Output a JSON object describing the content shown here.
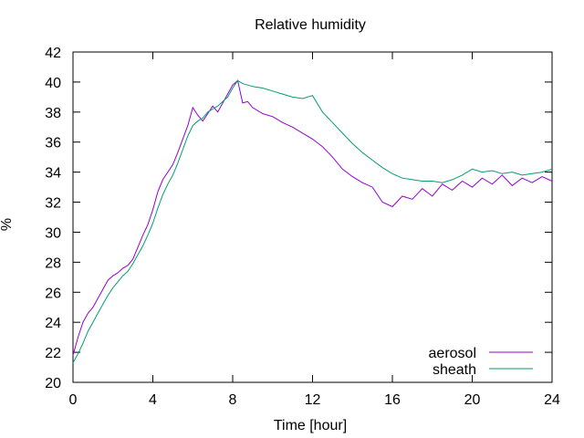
{
  "chart_data": {
    "type": "line",
    "title": "Relative humidity",
    "xlabel": "Time [hour]",
    "ylabel": "%",
    "xlim": [
      0,
      24
    ],
    "ylim": [
      20,
      42
    ],
    "x_ticks": [
      0,
      4,
      8,
      12,
      16,
      20,
      24
    ],
    "y_ticks": [
      20,
      22,
      24,
      26,
      28,
      30,
      32,
      34,
      36,
      38,
      40,
      42
    ],
    "x_tick_labels": [
      "0",
      "4",
      "8",
      "12",
      "16",
      "20",
      "24"
    ],
    "y_tick_labels": [
      "20",
      "22",
      "24",
      "26",
      "28",
      "30",
      "32",
      "34",
      "36",
      "38",
      "40",
      "42"
    ],
    "grid": false,
    "legend": "bottom-right",
    "series": [
      {
        "name": "aerosol",
        "color": "#9400d3",
        "x": [
          0,
          0.25,
          0.5,
          0.75,
          1,
          1.25,
          1.5,
          1.75,
          2,
          2.25,
          2.5,
          2.75,
          3,
          3.25,
          3.5,
          3.75,
          4,
          4.25,
          4.5,
          4.75,
          5,
          5.25,
          5.5,
          5.75,
          6,
          6.25,
          6.5,
          6.75,
          7,
          7.25,
          7.5,
          7.75,
          8,
          8.25,
          8.5,
          8.75,
          9,
          9.5,
          10,
          10.5,
          11,
          11.5,
          12,
          12.5,
          13,
          13.5,
          14,
          14.5,
          15,
          15.5,
          16,
          16.5,
          17,
          17.5,
          18,
          18.5,
          19,
          19.5,
          20,
          20.5,
          21,
          21.5,
          22,
          22.5,
          23,
          23.5,
          24
        ],
        "values": [
          21.8,
          23.0,
          24.0,
          24.6,
          25.0,
          25.6,
          26.2,
          26.8,
          27.1,
          27.3,
          27.6,
          27.8,
          28.2,
          29.0,
          29.8,
          30.5,
          31.5,
          32.7,
          33.5,
          34.0,
          34.5,
          35.3,
          36.2,
          37.1,
          38.3,
          37.8,
          37.4,
          37.9,
          38.4,
          38.0,
          38.6,
          39.2,
          39.8,
          40.1,
          38.6,
          38.7,
          38.3,
          37.9,
          37.7,
          37.3,
          37.0,
          36.6,
          36.2,
          35.7,
          35.0,
          34.2,
          33.7,
          33.3,
          33.0,
          32.0,
          31.7,
          32.4,
          32.2,
          32.9,
          32.4,
          33.2,
          32.8,
          33.4,
          33.0,
          33.6,
          33.2,
          33.8,
          33.1,
          33.6,
          33.3,
          33.7,
          33.4
        ]
      },
      {
        "name": "sheath",
        "color": "#009e73",
        "x": [
          0,
          0.25,
          0.5,
          0.75,
          1,
          1.25,
          1.5,
          1.75,
          2,
          2.25,
          2.5,
          2.75,
          3,
          3.25,
          3.5,
          3.75,
          4,
          4.25,
          4.5,
          4.75,
          5,
          5.25,
          5.5,
          5.75,
          6,
          6.25,
          6.5,
          6.75,
          7,
          7.25,
          7.5,
          7.75,
          8,
          8.25,
          8.5,
          8.75,
          9,
          9.5,
          10,
          10.5,
          11,
          11.5,
          12,
          12.5,
          13,
          13.5,
          14,
          14.5,
          15,
          15.5,
          16,
          16.5,
          17,
          17.5,
          18,
          18.5,
          19,
          19.5,
          20,
          20.5,
          21,
          21.5,
          22,
          22.5,
          23,
          23.5,
          24
        ],
        "values": [
          21.3,
          21.9,
          22.6,
          23.4,
          24.0,
          24.6,
          25.2,
          25.8,
          26.3,
          26.7,
          27.1,
          27.4,
          27.9,
          28.5,
          29.1,
          29.8,
          30.6,
          31.6,
          32.5,
          33.2,
          33.8,
          34.6,
          35.5,
          36.4,
          37.1,
          37.4,
          37.6,
          38.0,
          38.2,
          38.4,
          38.7,
          39.0,
          39.6,
          40.1,
          39.9,
          39.8,
          39.7,
          39.6,
          39.4,
          39.2,
          39.0,
          38.9,
          39.1,
          38.0,
          37.3,
          36.6,
          35.9,
          35.3,
          34.8,
          34.3,
          33.9,
          33.6,
          33.5,
          33.4,
          33.4,
          33.3,
          33.5,
          33.8,
          34.2,
          34.0,
          34.1,
          33.9,
          34.0,
          33.8,
          33.9,
          34.0,
          34.2
        ]
      }
    ]
  }
}
